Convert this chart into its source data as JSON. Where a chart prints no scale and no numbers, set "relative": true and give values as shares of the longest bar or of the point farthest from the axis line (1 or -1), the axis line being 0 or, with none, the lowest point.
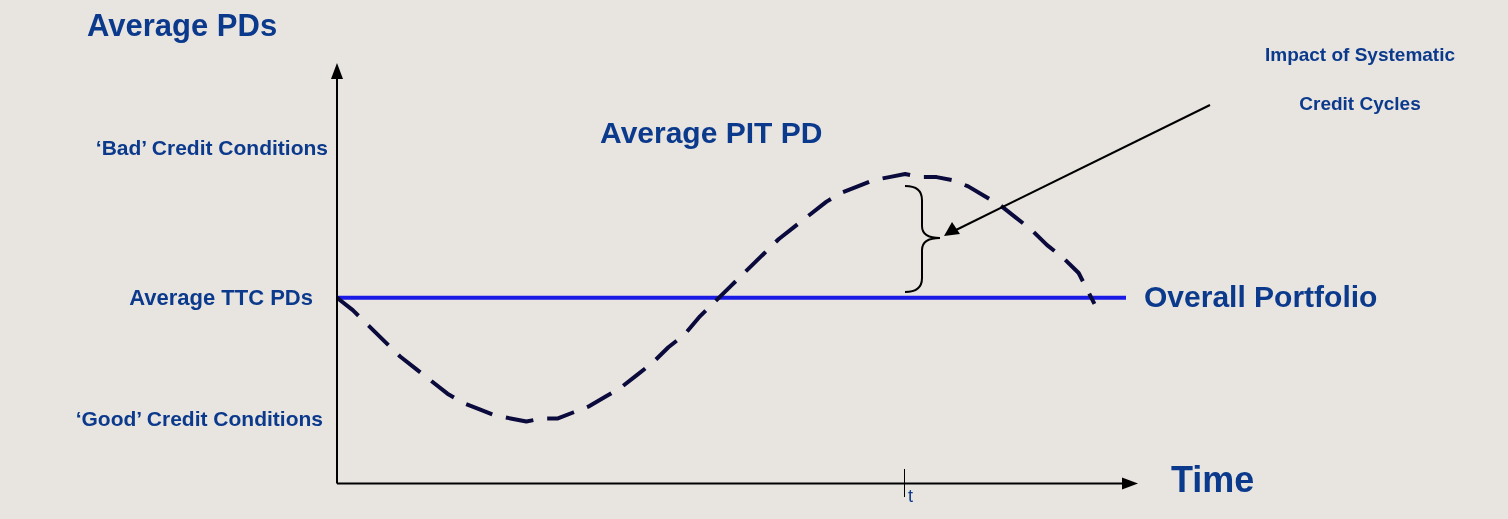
{
  "chart_data": {
    "type": "line",
    "relative": true,
    "ylabel": "Average PDs",
    "xlabel": "Time",
    "tick_labels": "x",
    "legend": false,
    "categories": [
      null,
      null,
      null,
      null,
      null,
      null,
      null,
      null,
      null,
      null,
      null,
      null,
      null,
      null,
      null,
      null,
      null,
      null,
      null,
      null,
      null,
      null,
      null,
      null,
      null,
      null,
      null,
      null,
      null,
      null,
      null,
      null,
      null,
      null,
      null,
      null,
      null,
      null,
      null,
      null,
      null,
      null,
      null,
      null,
      null,
      null,
      null,
      null,
      null,
      null,
      null
    ],
    "series": [
      {
        "name": "Average PIT PD",
        "color": "#0a0a3c",
        "line_style": "dashed",
        "values": [
          0.6,
          0.56,
          0.51,
          0.46,
          0.41,
          0.37,
          0.33,
          0.29,
          0.26,
          0.24,
          0.22,
          0.21,
          0.2,
          0.21,
          0.21,
          0.23,
          0.25,
          0.28,
          0.31,
          0.35,
          0.39,
          0.44,
          0.48,
          0.54,
          0.59,
          0.64,
          0.69,
          0.74,
          0.79,
          0.83,
          0.87,
          0.91,
          0.94,
          0.96,
          0.98,
          0.99,
          1.0,
          0.99,
          0.99,
          0.98,
          0.96,
          0.93,
          0.9,
          0.86,
          0.82,
          0.77,
          0.73,
          0.68,
          0.58,
          null,
          null
        ]
      },
      {
        "name": "Overall Portfolio",
        "color": "#1a1ae6",
        "line_style": "solid",
        "values": [
          0.6,
          0.6,
          0.6,
          0.6,
          0.6,
          0.6,
          0.6,
          0.6,
          0.6,
          0.6,
          0.6,
          0.6,
          0.6,
          0.6,
          0.6,
          0.6,
          0.6,
          0.6,
          0.6,
          0.6,
          0.6,
          0.6,
          0.6,
          0.6,
          0.6,
          0.6,
          0.6,
          0.6,
          0.6,
          0.6,
          0.6,
          0.6,
          0.6,
          0.6,
          0.6,
          0.6,
          0.6,
          0.6,
          0.6,
          0.6,
          0.6,
          0.6,
          0.6,
          0.6,
          0.6,
          0.6,
          0.6,
          0.6,
          0.6,
          0.6,
          0.6
        ]
      }
    ],
    "annotations": [
      "‘Bad’ Credit Conditions",
      "Average TTC PDs",
      "‘Good’ Credit Conditions",
      "Impact of Systematic Credit Cycles",
      "t"
    ]
  }
}
